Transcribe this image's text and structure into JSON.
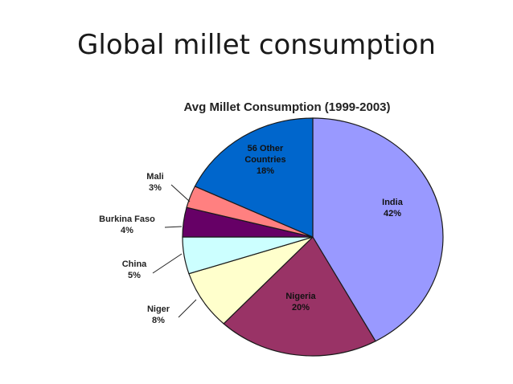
{
  "slide": {
    "title": "Global millet consumption"
  },
  "chart_data": {
    "type": "pie",
    "title": "Avg Millet Consumption (1999-2003)",
    "slices": [
      {
        "name": "India",
        "value": 42,
        "label": "42%",
        "color": "#9999ff"
      },
      {
        "name": "Nigeria",
        "value": 20,
        "label": "20%",
        "color": "#993366"
      },
      {
        "name": "Niger",
        "value": 8,
        "label": "8%",
        "color": "#ffffcc"
      },
      {
        "name": "China",
        "value": 5,
        "label": "5%",
        "color": "#ccffff"
      },
      {
        "name": "Burkina Faso",
        "value": 4,
        "label": "4%",
        "color": "#660066"
      },
      {
        "name": "Mali",
        "value": 3,
        "label": "3%",
        "color": "#ff8080"
      },
      {
        "name_lines": [
          "56 Other",
          "Countries"
        ],
        "value": 18,
        "label": "18%",
        "color": "#0066cc"
      }
    ]
  }
}
